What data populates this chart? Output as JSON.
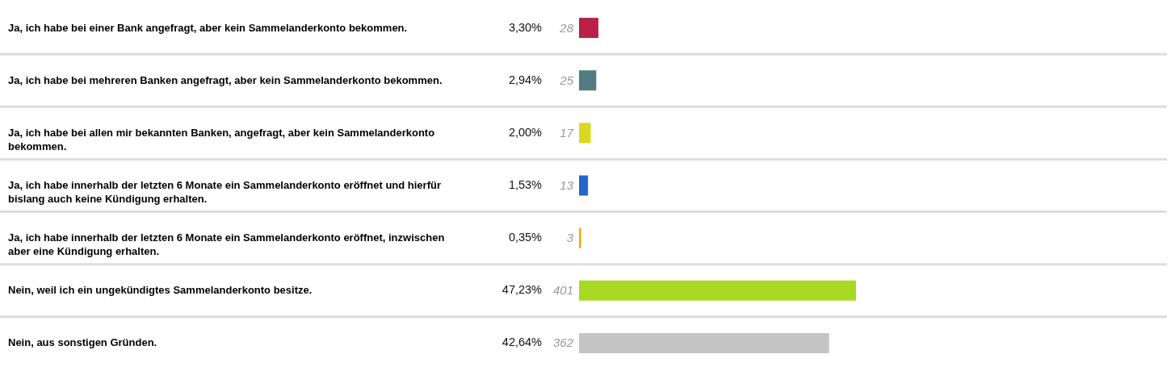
{
  "chart_data": {
    "type": "bar",
    "orientation": "horizontal",
    "categories": [
      "Ja, ich habe bei einer Bank angefragt, aber kein Sammelanderkonto bekommen.",
      "Ja, ich habe bei mehreren Banken angefragt, aber kein Sammelanderkonto bekommen.",
      "Ja, ich habe bei allen mir bekannten Banken, angefragt, aber kein Sammelanderkonto bekommen.",
      "Ja, ich habe innerhalb der letzten 6 Monate ein Sammelanderkonto eröffnet und hierfür bislang auch keine Kündigung erhalten.",
      "Ja, ich habe innerhalb der letzten 6 Monate ein Sammelanderkonto eröffnet, inzwischen aber eine Kündigung erhalten.",
      "Nein, weil ich ein ungekündigtes Sammelanderkonto besitze.",
      "Nein, aus sonstigen Gründen."
    ],
    "values": [
      3.3,
      2.94,
      2.0,
      1.53,
      0.35,
      47.23,
      42.64
    ],
    "value_labels": [
      "3,30%",
      "2,94%",
      "2,00%",
      "1,53%",
      "0,35%",
      "47,23%",
      "42,64%"
    ],
    "colors": [
      "#b82045",
      "#517b80",
      "#d9d922",
      "#2566cc",
      "#f5a800",
      "#a8d922",
      "#c4c4c4"
    ],
    "annotations": [
      "28",
      "25",
      "17",
      "13",
      "3",
      "401",
      "362"
    ]
  }
}
